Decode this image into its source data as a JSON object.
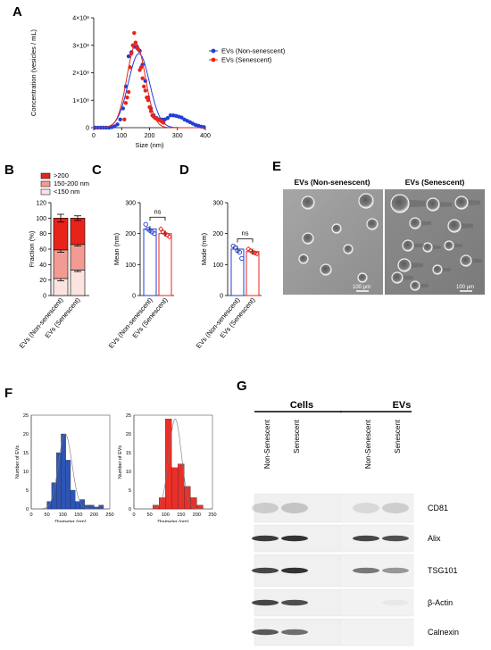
{
  "panels": {
    "A": "A",
    "B": "B",
    "C": "C",
    "D": "D",
    "E": "E",
    "F": "F",
    "G": "G"
  },
  "colors": {
    "non_senescent": "#1f3fd6",
    "senescent": "#e8241a",
    "bar_gt200": "#e8241a",
    "bar_150_200": "#f29b93",
    "bar_lt150": "#fbe3e0",
    "hist_ns": "#2e55b4",
    "hist_s": "#ea2f28"
  },
  "chart_data": [
    {
      "id": "A",
      "type": "scatter",
      "xlabel": "Size (nm)",
      "ylabel": "Concentration (vesicles / mL)",
      "xlim": [
        0,
        400
      ],
      "ylim": [
        0,
        400000000.0
      ],
      "xticks": [
        "0",
        "100",
        "200",
        "300",
        "400"
      ],
      "yticks": [
        "0",
        "1×10⁸",
        "2×10⁸",
        "3×10⁸",
        "4×10⁸"
      ],
      "legend_position": "top-right",
      "series": [
        {
          "name": "EVs (Non-senescent)",
          "color": "#1f3fd6",
          "x": [
            5,
            15,
            25,
            35,
            45,
            55,
            65,
            75,
            85,
            95,
            105,
            115,
            125,
            135,
            145,
            155,
            165,
            175,
            185,
            195,
            205,
            215,
            225,
            235,
            245,
            255,
            265,
            275,
            285,
            295,
            305,
            315,
            325,
            335,
            345,
            355,
            365,
            375,
            385,
            395
          ],
          "y": [
            0,
            0,
            0,
            0,
            0,
            0,
            2000000.0,
            5000000.0,
            12000000.0,
            30000000.0,
            70000000.0,
            150000000.0,
            260000000.0,
            275000000.0,
            295000000.0,
            295000000.0,
            280000000.0,
            230000000.0,
            170000000.0,
            110000000.0,
            70000000.0,
            45000000.0,
            35000000.0,
            30000000.0,
            30000000.0,
            30000000.0,
            35000000.0,
            45000000.0,
            45000000.0,
            43000000.0,
            40000000.0,
            37000000.0,
            30000000.0,
            25000000.0,
            20000000.0,
            15000000.0,
            10000000.0,
            7000000.0,
            4000000.0,
            2000000.0
          ],
          "fit": {
            "mean": 162,
            "sd": 38,
            "peak": 270000000.0
          }
        },
        {
          "name": "EVs (Senescent)",
          "color": "#e8241a",
          "x": [
            110,
            115,
            120,
            125,
            130,
            135,
            140,
            145,
            150,
            155,
            160,
            165,
            170,
            175,
            180,
            185,
            190,
            195,
            200,
            205,
            210,
            215,
            220,
            225,
            230,
            235,
            240,
            245,
            250
          ],
          "y": [
            30000000.0,
            90000000.0,
            110000000.0,
            130000000.0,
            220000000.0,
            270000000.0,
            300000000.0,
            345000000.0,
            310000000.0,
            290000000.0,
            285000000.0,
            210000000.0,
            220000000.0,
            180000000.0,
            150000000.0,
            135000000.0,
            110000000.0,
            100000000.0,
            75000000.0,
            60000000.0,
            45000000.0,
            40000000.0,
            35000000.0,
            33000000.0,
            30000000.0,
            28000000.0,
            25000000.0,
            22000000.0,
            18000000.0
          ],
          "fit": {
            "mean": 152,
            "sd": 33,
            "peak": 305000000.0
          }
        }
      ]
    },
    {
      "id": "B",
      "type": "bar",
      "stacked": true,
      "ylabel": "Fraction (%)",
      "ylim": [
        0,
        120
      ],
      "yticks": [
        "0",
        "20",
        "40",
        "60",
        "80",
        "100",
        "120"
      ],
      "categories": [
        "EVs (Non-senescent)",
        "EVs (Senescent)"
      ],
      "legend_position": "top",
      "series": [
        {
          "name": "<150 nm",
          "color": "#fbe3e0",
          "values": [
            22,
            33
          ],
          "err": [
            3,
            2
          ]
        },
        {
          "name": "150-200 nm",
          "color": "#f29b93",
          "values": [
            37,
            33
          ],
          "err": [
            3,
            2
          ]
        },
        {
          "name": ">200",
          "color": "#e8241a",
          "values": [
            41,
            34
          ],
          "err": [
            5,
            3
          ]
        }
      ]
    },
    {
      "id": "C",
      "type": "bar",
      "ylabel": "Mean (nm)",
      "ylim": [
        0,
        300
      ],
      "yticks": [
        "0",
        "100",
        "200",
        "300"
      ],
      "categories": [
        "EVs (Non-senescent)",
        "EVs (Senescent)"
      ],
      "annotation": "ns",
      "values": [
        215,
        200
      ],
      "points": [
        [
          230,
          215,
          210,
          205,
          200
        ],
        [
          215,
          205,
          200,
          195,
          190
        ]
      ]
    },
    {
      "id": "D",
      "type": "bar",
      "ylabel": "Mode (nm)",
      "ylim": [
        0,
        300
      ],
      "yticks": [
        "0",
        "100",
        "200",
        "300"
      ],
      "categories": [
        "EVs (Non-senescent)",
        "EVs (Senescent)"
      ],
      "annotation": "ns",
      "values": [
        150,
        142
      ],
      "points": [
        [
          160,
          155,
          145,
          140,
          120
        ],
        [
          150,
          145,
          140,
          138,
          135
        ]
      ]
    },
    {
      "id": "F1",
      "type": "bar",
      "xlabel": "Diameter (nm)",
      "ylabel": "Number of EVs",
      "xlim": [
        0,
        250
      ],
      "ylim": [
        0,
        25
      ],
      "xticks": [
        "0",
        "50",
        "100",
        "150",
        "200",
        "250"
      ],
      "yticks": [
        "0",
        "5",
        "10",
        "15",
        "20",
        "25"
      ],
      "bin_start": [
        50,
        65,
        80,
        95,
        110,
        125,
        140,
        155,
        170,
        185,
        200,
        215
      ],
      "bin_width": 15,
      "values": [
        2,
        7,
        15,
        20,
        13,
        5,
        2,
        2.5,
        1,
        1,
        0.5,
        1
      ]
    },
    {
      "id": "F2",
      "type": "bar",
      "xlabel": "Diameter (nm)",
      "ylabel": "Number of EVs",
      "xlim": [
        0,
        250
      ],
      "ylim": [
        0,
        25
      ],
      "xticks": [
        "0",
        "50",
        "100",
        "150",
        "200",
        "250"
      ],
      "yticks": [
        "0",
        "5",
        "10",
        "15",
        "20",
        "25"
      ],
      "bin_start": [
        60,
        80,
        100,
        120,
        140,
        160,
        180,
        200
      ],
      "bin_width": 20,
      "values": [
        1,
        3,
        24,
        11,
        12,
        6,
        3,
        1
      ]
    }
  ],
  "panel_e": {
    "left_title": "EVs (Non-senescent)",
    "right_title": "EVs (Senescent)",
    "scale_left": "100 μm",
    "scale_right": "100 μm"
  },
  "panel_g": {
    "group_cells": "Cells",
    "group_evs": "EVs",
    "lanes": [
      "Non-Senescent",
      "Senescent",
      "Non-Senescent",
      "Senescent"
    ],
    "proteins": [
      "CD81",
      "Alix",
      "TSG101",
      "β-Actin",
      "Calnexin"
    ]
  }
}
